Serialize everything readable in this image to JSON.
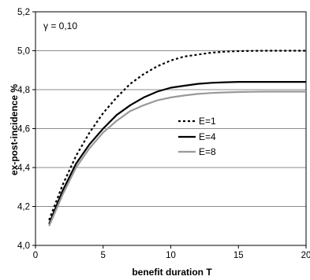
{
  "chart_data": {
    "type": "line",
    "annotation": "γ = 0,10",
    "xlabel": "benefit duration T",
    "ylabel": "ex-post-incidence %",
    "xlim": [
      0,
      20
    ],
    "ylim": [
      4.0,
      5.2
    ],
    "x_ticks": [
      0,
      5,
      10,
      15,
      20
    ],
    "y_ticks": [
      4.0,
      4.2,
      4.4,
      4.6,
      4.8,
      5.0,
      5.2
    ],
    "x_tick_labels": [
      "0",
      "5",
      "10",
      "15",
      "20"
    ],
    "y_tick_labels": [
      "4,0",
      "4,2",
      "4,4",
      "4,6",
      "4,8",
      "5,0",
      "5,2"
    ],
    "grid": "horizontal",
    "legend_position": "center-right",
    "x": [
      1,
      2,
      3,
      4,
      5,
      6,
      7,
      8,
      9,
      10,
      11,
      12,
      13,
      14,
      15,
      16,
      17,
      18,
      19,
      20
    ],
    "series": [
      {
        "name": "E=1",
        "color": "#000000",
        "style": "dashed",
        "values": [
          4.13,
          4.31,
          4.46,
          4.58,
          4.68,
          4.76,
          4.83,
          4.88,
          4.92,
          4.95,
          4.97,
          4.98,
          4.99,
          4.995,
          4.998,
          4.999,
          5.0,
          5.0,
          5.0,
          5.0
        ]
      },
      {
        "name": "E=4",
        "color": "#000000",
        "style": "solid",
        "values": [
          4.11,
          4.28,
          4.42,
          4.52,
          4.6,
          4.67,
          4.72,
          4.76,
          4.79,
          4.81,
          4.82,
          4.83,
          4.835,
          4.838,
          4.84,
          4.84,
          4.84,
          4.84,
          4.84,
          4.84
        ]
      },
      {
        "name": "E=8",
        "color": "#999999",
        "style": "solid",
        "values": [
          4.1,
          4.26,
          4.4,
          4.5,
          4.58,
          4.64,
          4.69,
          4.72,
          4.745,
          4.76,
          4.77,
          4.778,
          4.783,
          4.786,
          4.788,
          4.789,
          4.79,
          4.79,
          4.79,
          4.79
        ]
      }
    ]
  }
}
